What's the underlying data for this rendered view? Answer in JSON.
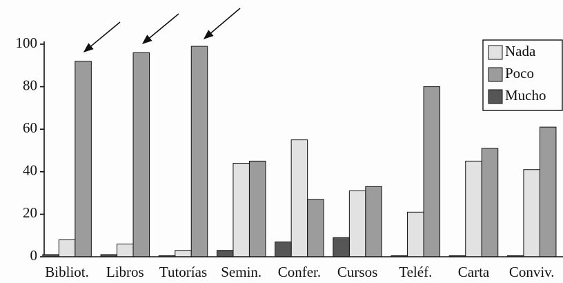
{
  "chart_data": {
    "type": "bar",
    "categories": [
      "Bibliot.",
      "Libros",
      "Tutorías",
      "Semin.",
      "Confer.",
      "Cursos",
      "Teléf.",
      "Carta",
      "Conviv."
    ],
    "series": [
      {
        "name": "Nada",
        "color": "#e2e2e2",
        "values": [
          8,
          6,
          3,
          44,
          55,
          31,
          21,
          45,
          41
        ]
      },
      {
        "name": "Poco",
        "color": "#9c9c9c",
        "values": [
          92,
          96,
          99,
          45,
          27,
          33,
          80,
          51,
          61
        ]
      },
      {
        "name": "Mucho",
        "color": "#565656",
        "values": [
          1,
          1,
          0.5,
          3,
          7,
          9,
          0.5,
          0.5,
          0.5
        ]
      }
    ],
    "ylim": [
      0,
      100
    ],
    "yticks": [
      0,
      20,
      40,
      60,
      80,
      100
    ],
    "grid": false,
    "legend": "upper right"
  }
}
